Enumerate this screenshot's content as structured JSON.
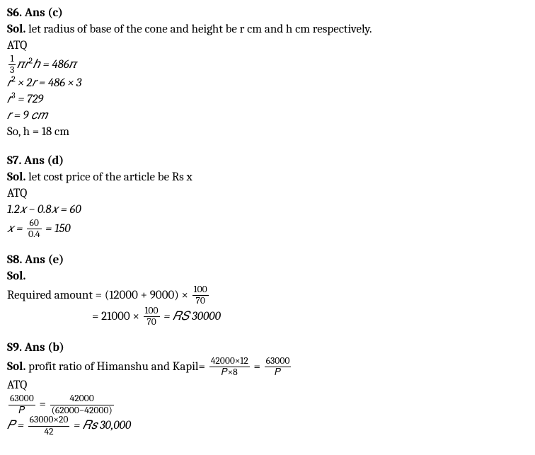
{
  "s6": {
    "heading": "S6. Ans (c)",
    "sol_label": "Sol.",
    "sol_text": " let radius of base of the cone and height be r cm and h cm respectively.",
    "atq": "ATQ",
    "eq1_lhs_frac_num": "1",
    "eq1_lhs_frac_den": "3",
    "eq1_lhs_rest": "𝜋𝑟",
    "eq1_lhs_sup": "2",
    "eq1_lhs_h": "ℎ = 486𝜋",
    "eq2": "𝑟",
    "eq2_sup": "2",
    "eq2_rest": " × 2𝑟 = 486 × 3",
    "eq3": "𝑟",
    "eq3_sup": "3",
    "eq3_rest": " = 729",
    "eq4": "𝑟 = 9 𝑐𝑚",
    "result": "So, h = 18 cm"
  },
  "s7": {
    "heading": "S7. Ans (d)",
    "sol_label": "Sol.",
    "sol_text": " let cost price of the article be Rs x",
    "atq": "ATQ",
    "eq1": " 1.2𝑥 − 0.8𝑥 = 60",
    "eq2_lhs": "𝑥 = ",
    "eq2_num": "60",
    "eq2_den": "0.4",
    "eq2_rhs": " = 150"
  },
  "s8": {
    "heading": "S8. Ans (e)",
    "sol_label": "Sol.",
    "eq1_lhs": " Required amount = (12000 + 9000) × ",
    "eq1_num": "100",
    "eq1_den": "70",
    "eq2_lhs": "= 21000 × ",
    "eq2_num": "100",
    "eq2_den": "70",
    "eq2_rhs": " = 𝑅𝑆 30000"
  },
  "s9": {
    "heading": "S9. Ans (b)",
    "sol_label": "Sol.",
    "sol_text": " profit ratio of Himanshu and Kapil= ",
    "r1_num": "42000×12",
    "r1_den": "𝑃×8",
    "r1_eq": " = ",
    "r2_num": "63000",
    "r2_den": "𝑃",
    "atq": "ATQ",
    "eq1_lhs_num": "63000",
    "eq1_lhs_den": "𝑃",
    "eq1_mid": " = ",
    "eq1_rhs_num": "42000",
    "eq1_rhs_den": "(62000−42000)",
    "eq2_lhs": "𝑃 = ",
    "eq2_num": "63000×20",
    "eq2_den": "42",
    "eq2_rhs": " = 𝑅𝑠 30,000"
  }
}
